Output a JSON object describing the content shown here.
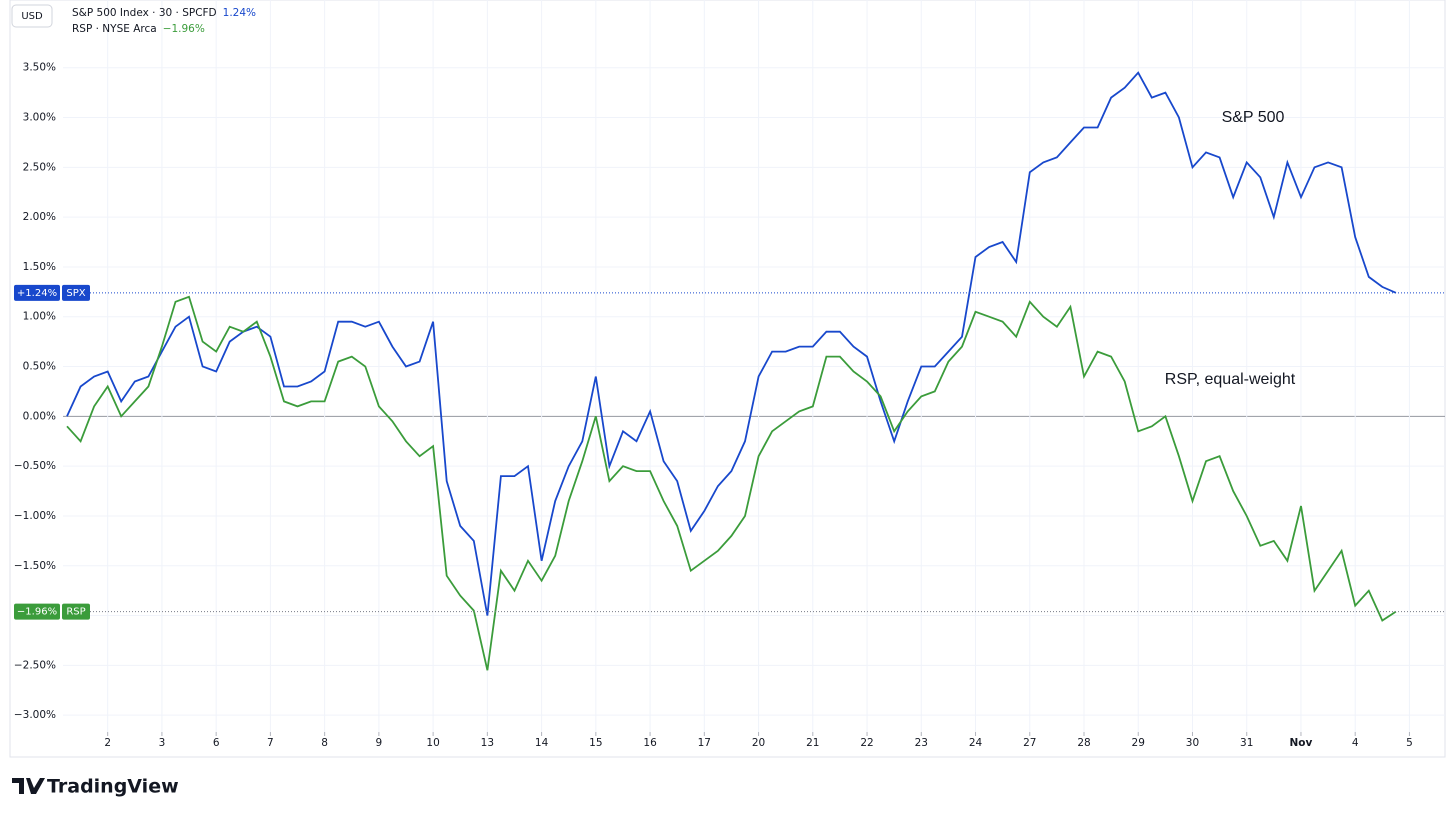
{
  "chart_data": {
    "type": "line",
    "currency": "USD",
    "brand": "TradingView",
    "annotations": [
      "S&P 500",
      "RSP, equal-weight"
    ],
    "categories": [
      null,
      null,
      null,
      "2",
      null,
      null,
      null,
      "3",
      null,
      null,
      null,
      "6",
      null,
      null,
      null,
      "7",
      null,
      null,
      null,
      "8",
      null,
      null,
      null,
      "9",
      null,
      null,
      null,
      "10",
      null,
      null,
      null,
      "13",
      null,
      null,
      null,
      "14",
      null,
      null,
      null,
      "15",
      null,
      null,
      null,
      "16",
      null,
      null,
      null,
      "17",
      null,
      null,
      null,
      "20",
      null,
      null,
      null,
      "21",
      null,
      null,
      null,
      "22",
      null,
      null,
      null,
      "23",
      null,
      null,
      null,
      "24",
      null,
      null,
      null,
      "27",
      null,
      null,
      null,
      "28",
      null,
      null,
      null,
      "29",
      null,
      null,
      null,
      "30",
      null,
      null,
      null,
      "31",
      null,
      null,
      null,
      "Nov",
      null,
      null,
      null,
      "4",
      null,
      null,
      null,
      "5"
    ],
    "series": [
      {
        "name": "S&P 500 Index · 30 · SPCFD",
        "legend_value": "1.24%",
        "tag": "+1.24%",
        "symbol": "SPX",
        "color": "#1848cc",
        "values": [
          0.0,
          0.3,
          0.4,
          0.45,
          0.15,
          0.35,
          0.4,
          0.65,
          0.9,
          1.0,
          0.5,
          0.45,
          0.75,
          0.85,
          0.9,
          0.8,
          0.3,
          0.3,
          0.35,
          0.45,
          0.95,
          0.95,
          0.9,
          0.95,
          0.7,
          0.5,
          0.55,
          0.95,
          -0.65,
          -1.1,
          -1.25,
          -2.0,
          -0.6,
          -0.6,
          -0.5,
          -1.45,
          -0.85,
          -0.5,
          -0.25,
          0.4,
          -0.5,
          -0.15,
          -0.25,
          0.05,
          -0.45,
          -0.65,
          -1.15,
          -0.95,
          -0.7,
          -0.55,
          -0.25,
          0.4,
          0.65,
          0.65,
          0.7,
          0.7,
          0.85,
          0.85,
          0.7,
          0.6,
          0.15,
          -0.25,
          0.15,
          0.5,
          0.5,
          0.65,
          0.8,
          1.6,
          1.7,
          1.75,
          1.55,
          2.45,
          2.55,
          2.6,
          2.75,
          2.9,
          2.9,
          3.2,
          3.3,
          3.45,
          3.2,
          3.25,
          3.0,
          2.5,
          2.65,
          2.6,
          2.2,
          2.55,
          2.4,
          2.0,
          2.55,
          2.2,
          2.5,
          2.55,
          2.5,
          1.8,
          1.4,
          1.3,
          1.24,
          null
        ]
      },
      {
        "name": "RSP · NYSE Arca",
        "legend_value": "−1.96%",
        "tag": "−1.96%",
        "symbol": "RSP",
        "color": "#3b9c3b",
        "values": [
          -0.1,
          -0.25,
          0.1,
          0.3,
          0.0,
          0.15,
          0.3,
          0.7,
          1.15,
          1.2,
          0.75,
          0.65,
          0.9,
          0.85,
          0.95,
          0.6,
          0.15,
          0.1,
          0.15,
          0.15,
          0.55,
          0.6,
          0.5,
          0.1,
          -0.05,
          -0.25,
          -0.4,
          -0.3,
          -1.6,
          -1.8,
          -1.95,
          -2.55,
          -1.55,
          -1.75,
          -1.45,
          -1.65,
          -1.4,
          -0.85,
          -0.45,
          0.0,
          -0.65,
          -0.5,
          -0.55,
          -0.55,
          -0.85,
          -1.1,
          -1.55,
          -1.45,
          -1.35,
          -1.2,
          -1.0,
          -0.4,
          -0.15,
          -0.05,
          0.05,
          0.1,
          0.6,
          0.6,
          0.45,
          0.35,
          0.2,
          -0.15,
          0.05,
          0.2,
          0.25,
          0.55,
          0.7,
          1.05,
          1.0,
          0.95,
          0.8,
          1.15,
          1.0,
          0.9,
          1.1,
          0.4,
          0.65,
          0.6,
          0.35,
          -0.15,
          -0.1,
          0.0,
          -0.4,
          -0.85,
          -0.45,
          -0.4,
          -0.75,
          -1.0,
          -1.3,
          -1.25,
          -1.45,
          -0.9,
          -1.75,
          -1.55,
          -1.35,
          -1.9,
          -1.75,
          -2.05,
          -1.96,
          null
        ]
      }
    ],
    "ylim": [
      -3.42,
      4.18
    ],
    "yticks": [
      {
        "value": -3.0,
        "label": "−3.00%"
      },
      {
        "value": -2.5,
        "label": "−2.50%"
      },
      {
        "value": -2.0,
        "label": "−2.00%"
      },
      {
        "value": -1.5,
        "label": "−1.50%"
      },
      {
        "value": -1.0,
        "label": "−1.00%"
      },
      {
        "value": -0.5,
        "label": "−0.50%"
      },
      {
        "value": 0,
        "label": "0.00%"
      },
      {
        "value": 0.5,
        "label": "0.50%"
      },
      {
        "value": 1.0,
        "label": "1.00%"
      },
      {
        "value": 1.5,
        "label": "1.50%"
      },
      {
        "value": 2.0,
        "label": "2.00%"
      },
      {
        "value": 2.5,
        "label": "2.50%"
      },
      {
        "value": 3.0,
        "label": "3.00%"
      },
      {
        "value": 3.5,
        "label": "3.50%"
      }
    ],
    "grid": true
  }
}
